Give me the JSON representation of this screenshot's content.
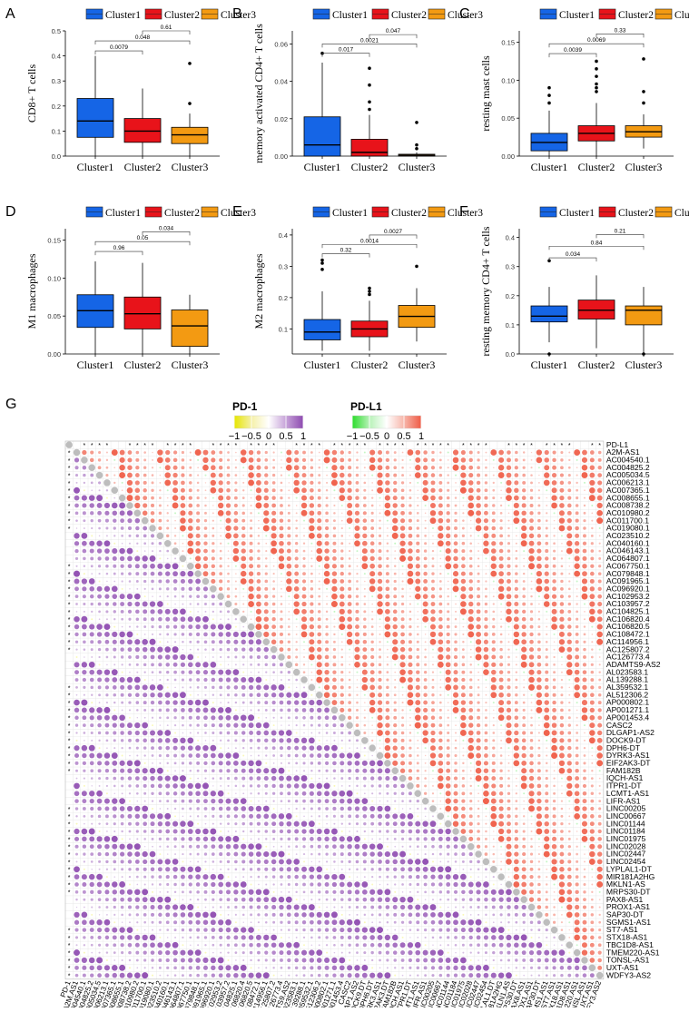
{
  "panels": [
    {
      "letter": "A",
      "ylabel": "CD8+ T cells",
      "legend": [
        "Cluster1",
        "Cluster2",
        "Cluster3"
      ],
      "categories": [
        "Cluster1",
        "Cluster2",
        "Cluster3"
      ],
      "yticks": [
        "0.0",
        "0.1",
        "0.2",
        "0.3",
        "0.4",
        "0.5"
      ],
      "ylim": [
        0,
        0.5
      ],
      "boxes": [
        {
          "q1": 0.075,
          "median": 0.14,
          "q3": 0.23,
          "wlo": 0.0,
          "whi": 0.4,
          "outliers": []
        },
        {
          "q1": 0.055,
          "median": 0.1,
          "q3": 0.15,
          "wlo": 0.0,
          "whi": 0.27,
          "outliers": []
        },
        {
          "q1": 0.05,
          "median": 0.085,
          "q3": 0.115,
          "wlo": 0.0,
          "whi": 0.17,
          "outliers": [
            0.21,
            0.37
          ]
        }
      ],
      "pvalues": [
        {
          "from": 0,
          "to": 1,
          "y": 0.42,
          "label": "0.0079"
        },
        {
          "from": 0,
          "to": 2,
          "y": 0.46,
          "label": "0.048"
        },
        {
          "from": 1,
          "to": 2,
          "y": 0.5,
          "label": "0.61"
        }
      ]
    },
    {
      "letter": "B",
      "ylabel": "memory activated CD4+ T cells",
      "legend": [
        "Cluster1",
        "Cluster2",
        "Cluster3"
      ],
      "categories": [
        "Cluster1",
        "Cluster2",
        "Cluster3"
      ],
      "yticks": [
        "0.00",
        "0.02",
        "0.04",
        "0.06"
      ],
      "ylim": [
        0,
        0.067
      ],
      "boxes": [
        {
          "q1": 0.0,
          "median": 0.006,
          "q3": 0.021,
          "wlo": 0.0,
          "whi": 0.05,
          "outliers": [
            0.055
          ]
        },
        {
          "q1": 0.0,
          "median": 0.002,
          "q3": 0.009,
          "wlo": 0.0,
          "whi": 0.022,
          "outliers": [
            0.025,
            0.029,
            0.038,
            0.047
          ]
        },
        {
          "q1": 0.0,
          "median": 0.0005,
          "q3": 0.001,
          "wlo": 0.0,
          "whi": 0.002,
          "outliers": [
            0.004,
            0.006,
            0.018
          ]
        }
      ],
      "pvalues": [
        {
          "from": 0,
          "to": 1,
          "y": 0.055,
          "label": "0.017"
        },
        {
          "from": 0,
          "to": 2,
          "y": 0.06,
          "label": "0.0021"
        },
        {
          "from": 1,
          "to": 2,
          "y": 0.065,
          "label": "0.047"
        }
      ]
    },
    {
      "letter": "C",
      "ylabel": "resting mast cells",
      "legend": [
        "Cluster1",
        "Cluster2",
        "Cluster3"
      ],
      "categories": [
        "Cluster1",
        "Cluster2",
        "Cluster3"
      ],
      "yticks": [
        "0.00",
        "0.05",
        "0.10",
        "0.15"
      ],
      "ylim": [
        0,
        0.165
      ],
      "boxes": [
        {
          "q1": 0.007,
          "median": 0.018,
          "q3": 0.03,
          "wlo": 0.0,
          "whi": 0.06,
          "outliers": [
            0.07,
            0.08,
            0.09
          ]
        },
        {
          "q1": 0.02,
          "median": 0.03,
          "q3": 0.04,
          "wlo": 0.0,
          "whi": 0.07,
          "outliers": [
            0.085,
            0.09,
            0.095,
            0.105,
            0.115,
            0.125
          ]
        },
        {
          "q1": 0.025,
          "median": 0.032,
          "q3": 0.04,
          "wlo": 0.01,
          "whi": 0.055,
          "outliers": [
            0.07,
            0.085,
            0.128
          ]
        }
      ],
      "pvalues": [
        {
          "from": 0,
          "to": 1,
          "y": 0.135,
          "label": "0.0039"
        },
        {
          "from": 0,
          "to": 2,
          "y": 0.148,
          "label": "0.0069"
        },
        {
          "from": 1,
          "to": 2,
          "y": 0.161,
          "label": "0.33"
        }
      ]
    },
    {
      "letter": "D",
      "ylabel": "M1 macrophages",
      "legend": [
        "Cluster1",
        "Cluster2",
        "Cluster3"
      ],
      "categories": [
        "Cluster1",
        "Cluster2",
        "Cluster3"
      ],
      "yticks": [
        "0.00",
        "0.05",
        "0.10",
        "0.15"
      ],
      "ylim": [
        0,
        0.165
      ],
      "boxes": [
        {
          "q1": 0.035,
          "median": 0.057,
          "q3": 0.078,
          "wlo": 0.0,
          "whi": 0.122,
          "outliers": []
        },
        {
          "q1": 0.033,
          "median": 0.053,
          "q3": 0.075,
          "wlo": 0.0,
          "whi": 0.12,
          "outliers": []
        },
        {
          "q1": 0.01,
          "median": 0.037,
          "q3": 0.058,
          "wlo": 0.0,
          "whi": 0.078,
          "outliers": []
        }
      ],
      "pvalues": [
        {
          "from": 0,
          "to": 1,
          "y": 0.135,
          "label": "0.96"
        },
        {
          "from": 0,
          "to": 2,
          "y": 0.148,
          "label": "0.05"
        },
        {
          "from": 1,
          "to": 2,
          "y": 0.161,
          "label": "0.034"
        }
      ]
    },
    {
      "letter": "E",
      "ylabel": "M2 macrophages",
      "legend": [
        "Cluster1",
        "Cluster2",
        "Cluster3"
      ],
      "categories": [
        "Cluster1",
        "Cluster2",
        "Cluster3"
      ],
      "yticks": [
        "0.1",
        "0.2",
        "0.3",
        "0.4"
      ],
      "ylim": [
        0.02,
        0.42
      ],
      "boxes": [
        {
          "q1": 0.065,
          "median": 0.09,
          "q3": 0.13,
          "wlo": 0.03,
          "whi": 0.22,
          "outliers": [
            0.29,
            0.31,
            0.32
          ]
        },
        {
          "q1": 0.075,
          "median": 0.1,
          "q3": 0.125,
          "wlo": 0.03,
          "whi": 0.19,
          "outliers": [
            0.21,
            0.22,
            0.23
          ]
        },
        {
          "q1": 0.105,
          "median": 0.14,
          "q3": 0.175,
          "wlo": 0.06,
          "whi": 0.23,
          "outliers": [
            0.3
          ]
        }
      ],
      "pvalues": [
        {
          "from": 0,
          "to": 1,
          "y": 0.34,
          "label": "0.32"
        },
        {
          "from": 0,
          "to": 2,
          "y": 0.37,
          "label": "0.0014"
        },
        {
          "from": 1,
          "to": 2,
          "y": 0.4,
          "label": "0.0027"
        }
      ]
    },
    {
      "letter": "F",
      "ylabel": "resting memory CD4+ T cells",
      "legend": [
        "Cluster1",
        "Cluster2",
        "Cluster3"
      ],
      "categories": [
        "Cluster1",
        "Cluster2",
        "Cluster3"
      ],
      "yticks": [
        "0.0",
        "0.1",
        "0.2",
        "0.3",
        "0.4"
      ],
      "ylim": [
        0,
        0.43
      ],
      "boxes": [
        {
          "q1": 0.11,
          "median": 0.13,
          "q3": 0.165,
          "wlo": 0.04,
          "whi": 0.23,
          "outliers": [
            0.0,
            0.32
          ]
        },
        {
          "q1": 0.12,
          "median": 0.15,
          "q3": 0.185,
          "wlo": 0.02,
          "whi": 0.27,
          "outliers": []
        },
        {
          "q1": 0.1,
          "median": 0.15,
          "q3": 0.165,
          "wlo": 0.0,
          "whi": 0.23,
          "outliers": [
            0.0
          ]
        }
      ],
      "pvalues": [
        {
          "from": 0,
          "to": 1,
          "y": 0.33,
          "label": "0.034"
        },
        {
          "from": 0,
          "to": 2,
          "y": 0.37,
          "label": "0.84"
        },
        {
          "from": 1,
          "to": 2,
          "y": 0.41,
          "label": "0.21"
        }
      ]
    }
  ],
  "colors": {
    "c1": "#1565e6",
    "c2": "#e8131a",
    "c3": "#f39a12",
    "pd1": "#8e4bb0",
    "pd1neg": "#e6e600",
    "pdl1": "#ef5b45",
    "pdl1neg": "#2bdc2b"
  },
  "panelG": {
    "letter": "G",
    "legend_pd1": {
      "title": "PD-1",
      "ticks": [
        "−1",
        "−0.5",
        "0",
        "0.5",
        "1"
      ]
    },
    "legend_pdl1": {
      "title": "PD-L1",
      "ticks": [
        "−1",
        "−0.5",
        "0",
        "0.5",
        "1"
      ]
    },
    "genes": [
      "PD-L1",
      "A2M-AS1",
      "AC004540.1",
      "AC004825.2",
      "AC005034.5",
      "AC006213.1",
      "AC007365.1",
      "AC008655.1",
      "AC008738.2",
      "AC010980.2",
      "AC011700.1",
      "AC019080.1",
      "AC023510.2",
      "AC040160.1",
      "AC046143.1",
      "AC064807.1",
      "AC067750.1",
      "AC079848.1",
      "AC091965.1",
      "AC096920.1",
      "AC102953.2",
      "AC103957.2",
      "AC104825.1",
      "AC106820.4",
      "AC106820.5",
      "AC108472.1",
      "AC114956.1",
      "AC125807.2",
      "AC126773.4",
      "ADAMTS9-AS2",
      "AL023583.1",
      "AL139288.1",
      "AL359532.1",
      "AL512306.2",
      "AP000802.1",
      "AP001271.1",
      "AP001453.4",
      "CASC2",
      "DLGAP1-AS2",
      "DOCK9-DT",
      "DPH6-DT",
      "DYRK3-AS1",
      "EIF2AK3-DT",
      "FAM182B",
      "IQCH-AS1",
      "ITPR1-DT",
      "LCMT1-AS1",
      "LIFR-AS1",
      "LINC00205",
      "LINC00667",
      "LINC01144",
      "LINC01184",
      "LINC01975",
      "LINC02028",
      "LINC02447",
      "LINC02454",
      "LYPLAL1-DT",
      "MIR181A2HG",
      "MKLN1-AS",
      "MRPS30-DT",
      "PAX8-AS1",
      "PROX1-AS1",
      "SAP30-DT",
      "SGMS1-AS1",
      "ST7-AS1",
      "STX18-AS1",
      "TBC1D8-AS1",
      "TMEM220-AS1",
      "TONSL-AS1",
      "UXT-AS1",
      "WDFY3-AS2"
    ],
    "xgenes": [
      "PD-1",
      "A2M.AS1",
      "AC004540.1",
      "AC004825.2",
      "AC005034.5",
      "AC006213.1",
      "AC007365.1",
      "AC008655.1",
      "AC008738.2",
      "AC010980.2",
      "AC011700.1",
      "AC019080.1",
      "AC023510.2",
      "AC040160.1",
      "AC046143.1",
      "AC064807.1",
      "AC067750.1",
      "AC079848.1",
      "AC091965.1",
      "AC096920.1",
      "AC102953.2",
      "AC103957.2",
      "AC104825.1",
      "AC106820.4",
      "AC106820.5",
      "AC108472.1",
      "AC114956.1",
      "AC125807.2",
      "AC126773.4",
      "ADAMTS9.AS2",
      "AL023583.1",
      "AL139288.1",
      "AL359532.1",
      "AL512306.2",
      "AP000802.1",
      "AP001271.1",
      "AP001453.4",
      "CASC2",
      "DLGAP1.AS2",
      "DOCK9.DT",
      "DPH6.DT",
      "DYRK3.AS1",
      "EIF2AK3.DT",
      "FAM182B",
      "IQCH.AS1",
      "ITPR1.DT",
      "LCMT1.AS1",
      "LIFR.AS1",
      "LINC00205",
      "LINC00667",
      "LINC01144",
      "LINC01184",
      "LINC01975",
      "LINC02028",
      "LINC02447",
      "LINC02454",
      "LYPLAL1.DT",
      "MIR181A2HG",
      "MKLN1.AS",
      "MRPS30.DT",
      "PAX8.AS1",
      "PROX1.AS1",
      "SAP30.DT",
      "SGMS1.AS1",
      "ST7.AS1",
      "STX18.AS1",
      "TBC1D8.AS1",
      "TMEM220.AS1",
      "TONSL.AS1",
      "UXT.AS1",
      "WDFY3.AS2"
    ],
    "star": "*"
  }
}
